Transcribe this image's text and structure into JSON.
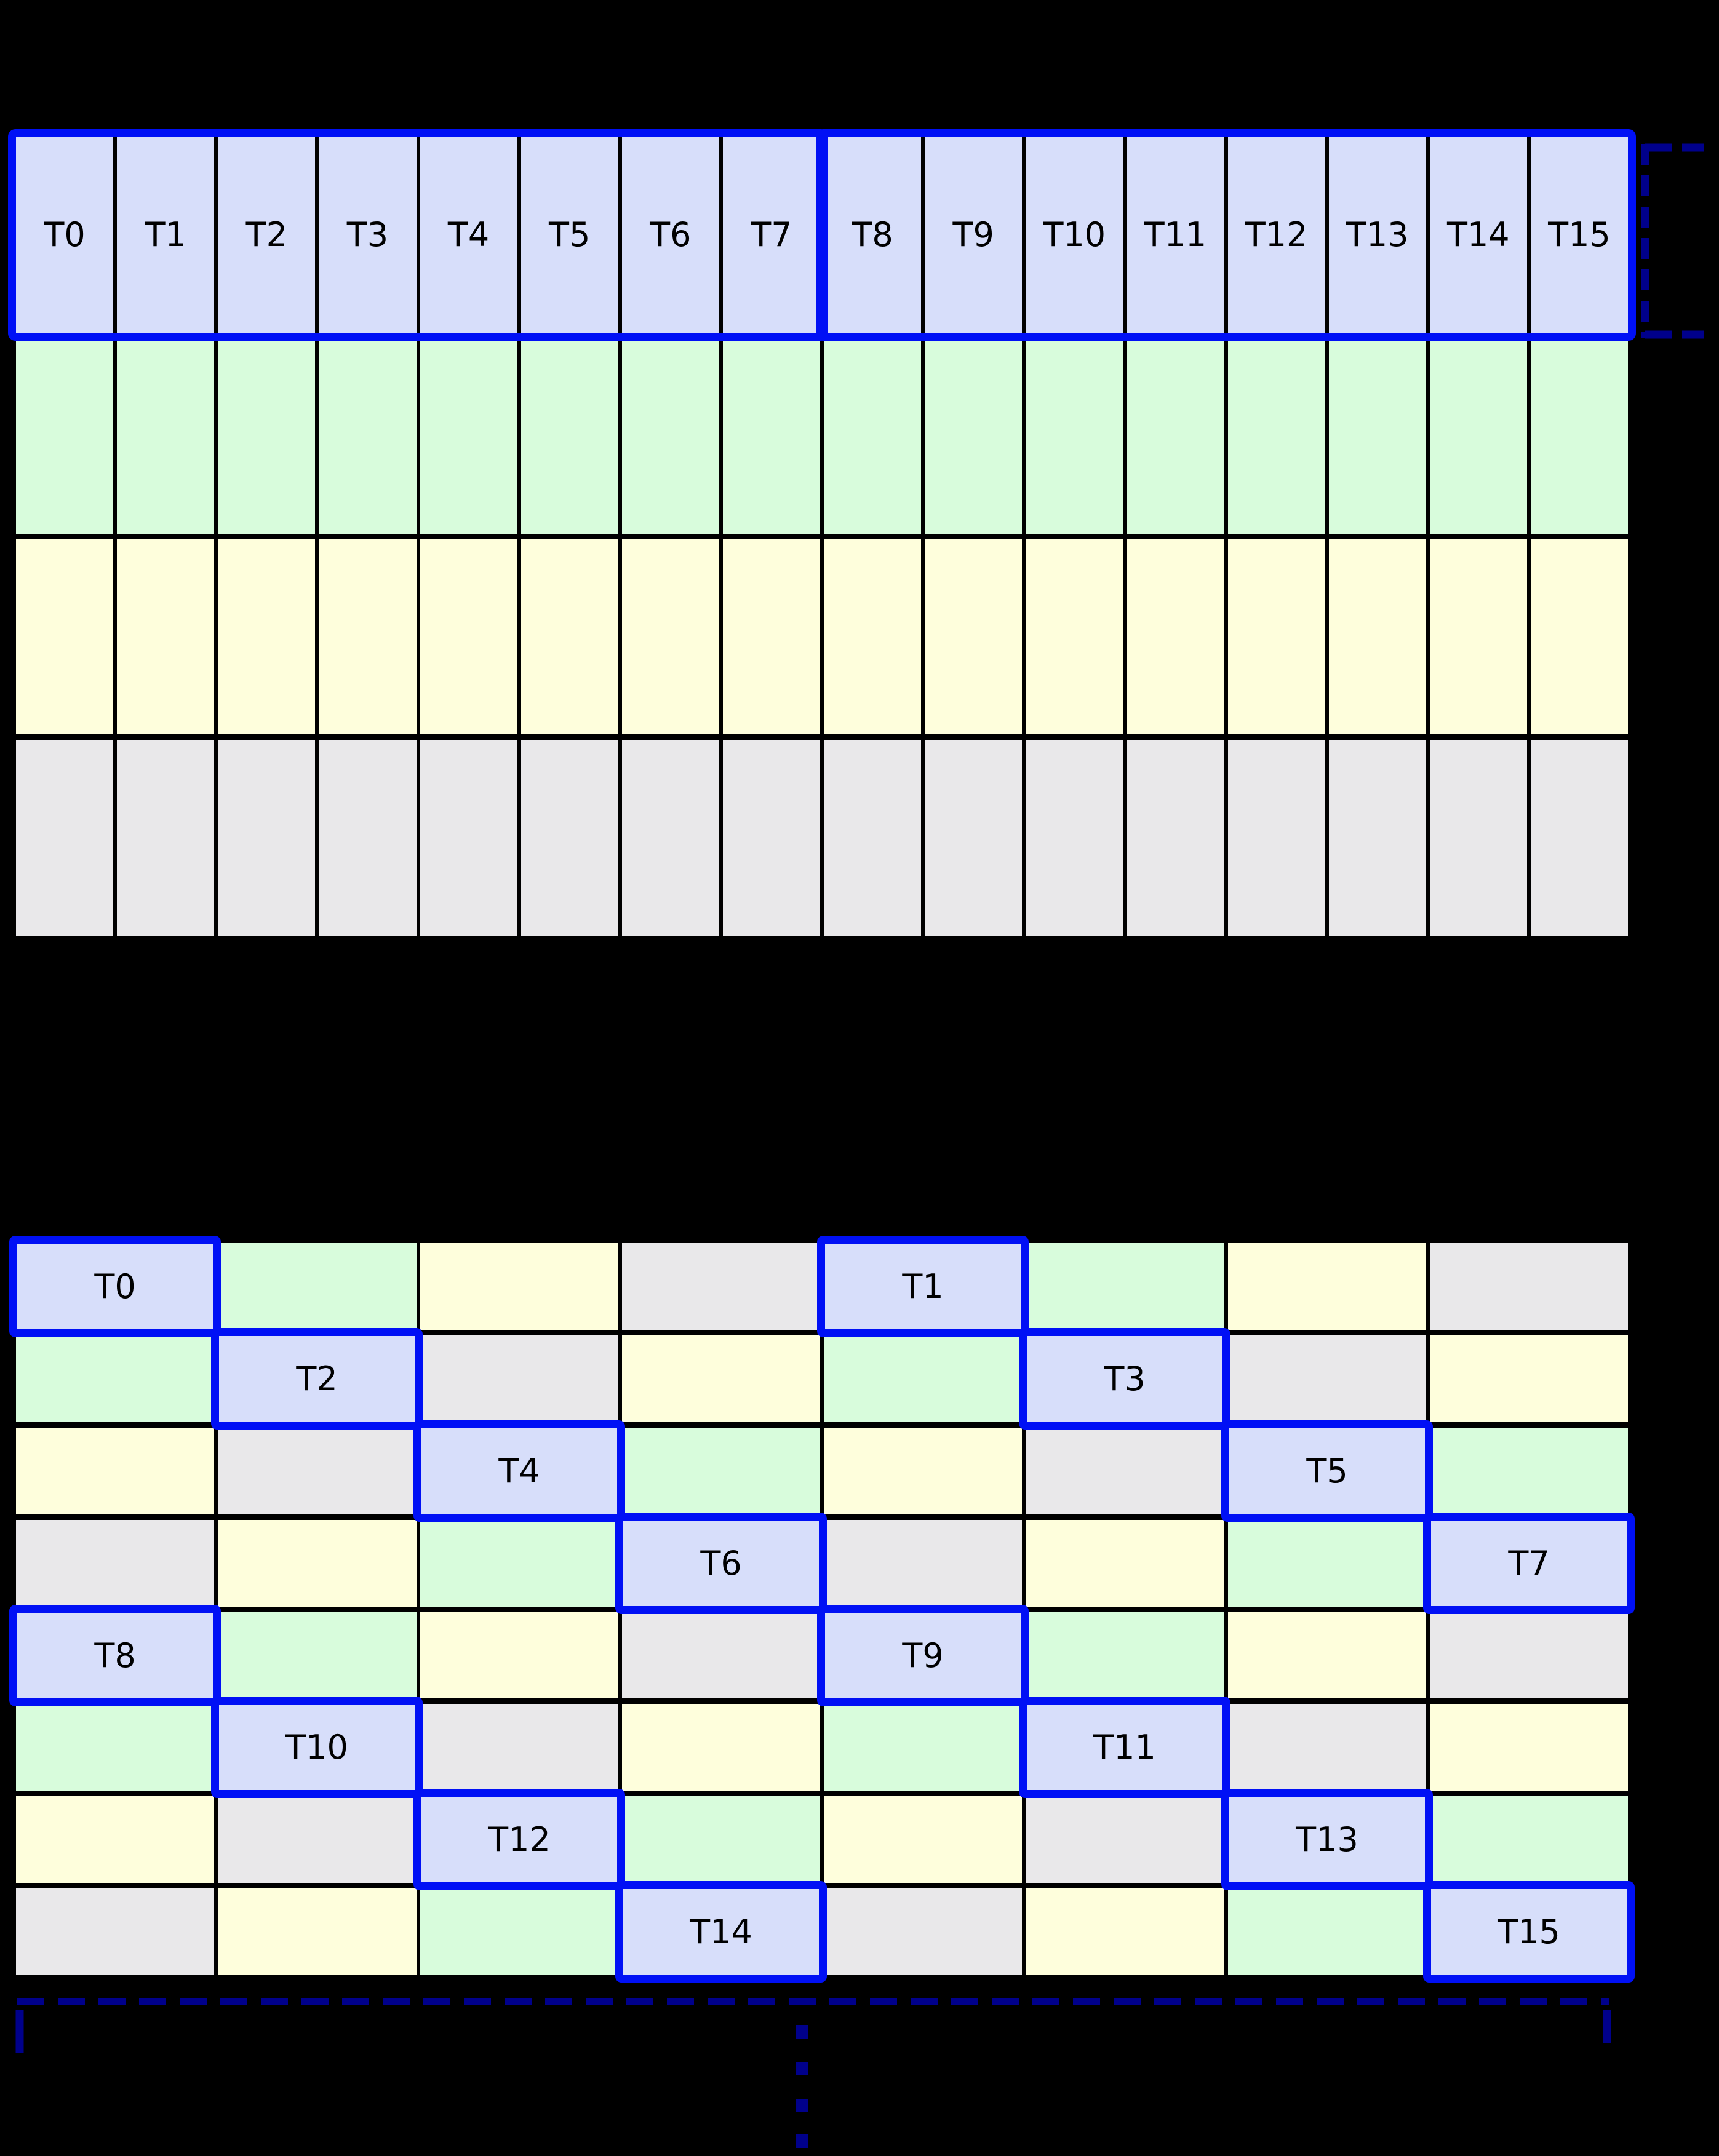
{
  "colors": {
    "background": "#000000",
    "cell_blue": "#d7defa",
    "cell_green": "#d8fcdc",
    "cell_yellow": "#fefedc",
    "cell_gray": "#e9e8ea",
    "highlight_blue": "#0010f5",
    "bracket_navy": "#00008b",
    "grid_line": "#000000",
    "label_text": "#000000"
  },
  "top_grid": {
    "rows": 4,
    "cols": 16,
    "row_fills": [
      "blue",
      "green",
      "yellow",
      "gray"
    ],
    "thread_labels": [
      "T0",
      "T1",
      "T2",
      "T3",
      "T4",
      "T5",
      "T6",
      "T7",
      "T8",
      "T9",
      "T10",
      "T11",
      "T12",
      "T13",
      "T14",
      "T15"
    ],
    "thread_groups": [
      {
        "name": "thread-group-0-7",
        "start": 0,
        "end": 7
      },
      {
        "name": "thread-group-8-15",
        "start": 8,
        "end": 15
      }
    ]
  },
  "swizzled_grid": {
    "rows": 8,
    "cols": 8,
    "fill_order": [
      "blue",
      "green",
      "yellow",
      "gray"
    ],
    "color_pattern": [
      [
        0,
        1,
        2,
        3,
        0,
        1,
        2,
        3
      ],
      [
        1,
        0,
        3,
        2,
        1,
        0,
        3,
        2
      ],
      [
        2,
        3,
        0,
        1,
        2,
        3,
        0,
        1
      ],
      [
        3,
        2,
        1,
        0,
        3,
        2,
        1,
        0
      ],
      [
        0,
        1,
        2,
        3,
        0,
        1,
        2,
        3
      ],
      [
        1,
        0,
        3,
        2,
        1,
        0,
        3,
        2
      ],
      [
        2,
        3,
        0,
        1,
        2,
        3,
        0,
        1
      ],
      [
        3,
        2,
        1,
        0,
        3,
        2,
        1,
        0
      ]
    ],
    "highlights": [
      {
        "label": "T0",
        "row": 0,
        "col": 0
      },
      {
        "label": "T1",
        "row": 0,
        "col": 4
      },
      {
        "label": "T2",
        "row": 1,
        "col": 1
      },
      {
        "label": "T3",
        "row": 1,
        "col": 5
      },
      {
        "label": "T4",
        "row": 2,
        "col": 2
      },
      {
        "label": "T5",
        "row": 2,
        "col": 6
      },
      {
        "label": "T6",
        "row": 3,
        "col": 3
      },
      {
        "label": "T7",
        "row": 3,
        "col": 7
      },
      {
        "label": "T8",
        "row": 4,
        "col": 0
      },
      {
        "label": "T9",
        "row": 4,
        "col": 4
      },
      {
        "label": "T10",
        "row": 5,
        "col": 1
      },
      {
        "label": "T11",
        "row": 5,
        "col": 5
      },
      {
        "label": "T12",
        "row": 6,
        "col": 2
      },
      {
        "label": "T13",
        "row": 6,
        "col": 6
      },
      {
        "label": "T14",
        "row": 7,
        "col": 3
      },
      {
        "label": "T15",
        "row": 7,
        "col": 7
      }
    ]
  },
  "annotations": {
    "side_bracket": {
      "position": "right-of-top-grid-first-row",
      "style": "dashed-square-bracket-opening-right"
    },
    "bottom_bracket": {
      "position": "below-swizzled-grid",
      "style": "dashed-horizontal-with-end-ticks"
    },
    "ellipsis": {
      "dot_count": 4,
      "orientation": "vertical"
    }
  }
}
